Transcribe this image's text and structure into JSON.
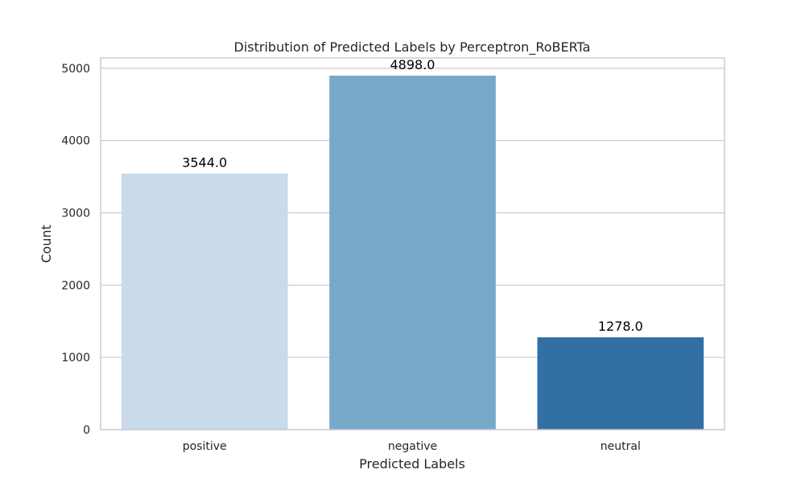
{
  "chart_data": {
    "type": "bar",
    "title": "Distribution of Predicted Labels by Perceptron_RoBERTa",
    "xlabel": "Predicted Labels",
    "ylabel": "Count",
    "categories": [
      "positive",
      "negative",
      "neutral"
    ],
    "values": [
      3544.0,
      4898.0,
      1278.0
    ],
    "data_labels": [
      "3544.0",
      "4898.0",
      "1278.0"
    ],
    "colors": [
      "#c9daea",
      "#77a9c9",
      "#326fa3"
    ],
    "ylim": [
      0,
      5143
    ],
    "yticks": [
      0,
      1000,
      2000,
      3000,
      4000,
      5000
    ],
    "ytick_labels": [
      "0",
      "1000",
      "2000",
      "3000",
      "4000",
      "5000"
    ],
    "grid": "horizontal",
    "legend": "none"
  }
}
